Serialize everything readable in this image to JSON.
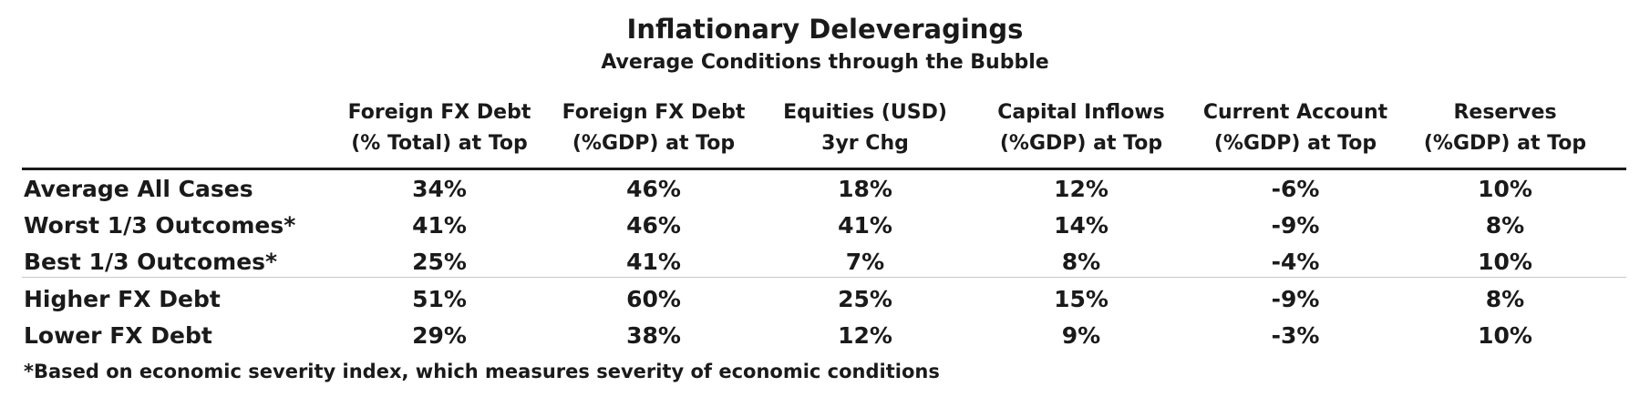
{
  "chart_data": {
    "type": "table",
    "title": "Inflationary Deleveragings",
    "subtitle": "Average Conditions through the Bubble",
    "columns": [
      {
        "line1": "Foreign FX Debt",
        "line2": "(% Total) at Top"
      },
      {
        "line1": "Foreign FX Debt",
        "line2": "(%GDP) at Top"
      },
      {
        "line1": "Equities (USD)",
        "line2": "3yr Chg"
      },
      {
        "line1": "Capital Inflows",
        "line2": "(%GDP) at Top"
      },
      {
        "line1": "Current Account",
        "line2": "(%GDP) at Top"
      },
      {
        "line1": "Reserves",
        "line2": "(%GDP) at Top"
      }
    ],
    "rows": [
      {
        "label": "Average All Cases",
        "values": [
          "34%",
          "46%",
          "18%",
          "12%",
          "-6%",
          "10%"
        ]
      },
      {
        "label": "Worst 1/3 Outcomes*",
        "values": [
          "41%",
          "46%",
          "41%",
          "14%",
          "-9%",
          "8%"
        ]
      },
      {
        "label": "Best 1/3 Outcomes*",
        "values": [
          "25%",
          "41%",
          "7%",
          "8%",
          "-4%",
          "10%"
        ]
      },
      {
        "label": "Higher FX Debt",
        "values": [
          "51%",
          "60%",
          "25%",
          "15%",
          "-9%",
          "8%"
        ]
      },
      {
        "label": "Lower FX Debt",
        "values": [
          "29%",
          "38%",
          "12%",
          "9%",
          "-3%",
          "10%"
        ]
      }
    ],
    "footnote": "*Based on economic severity index, which measures severity of economic conditions"
  }
}
